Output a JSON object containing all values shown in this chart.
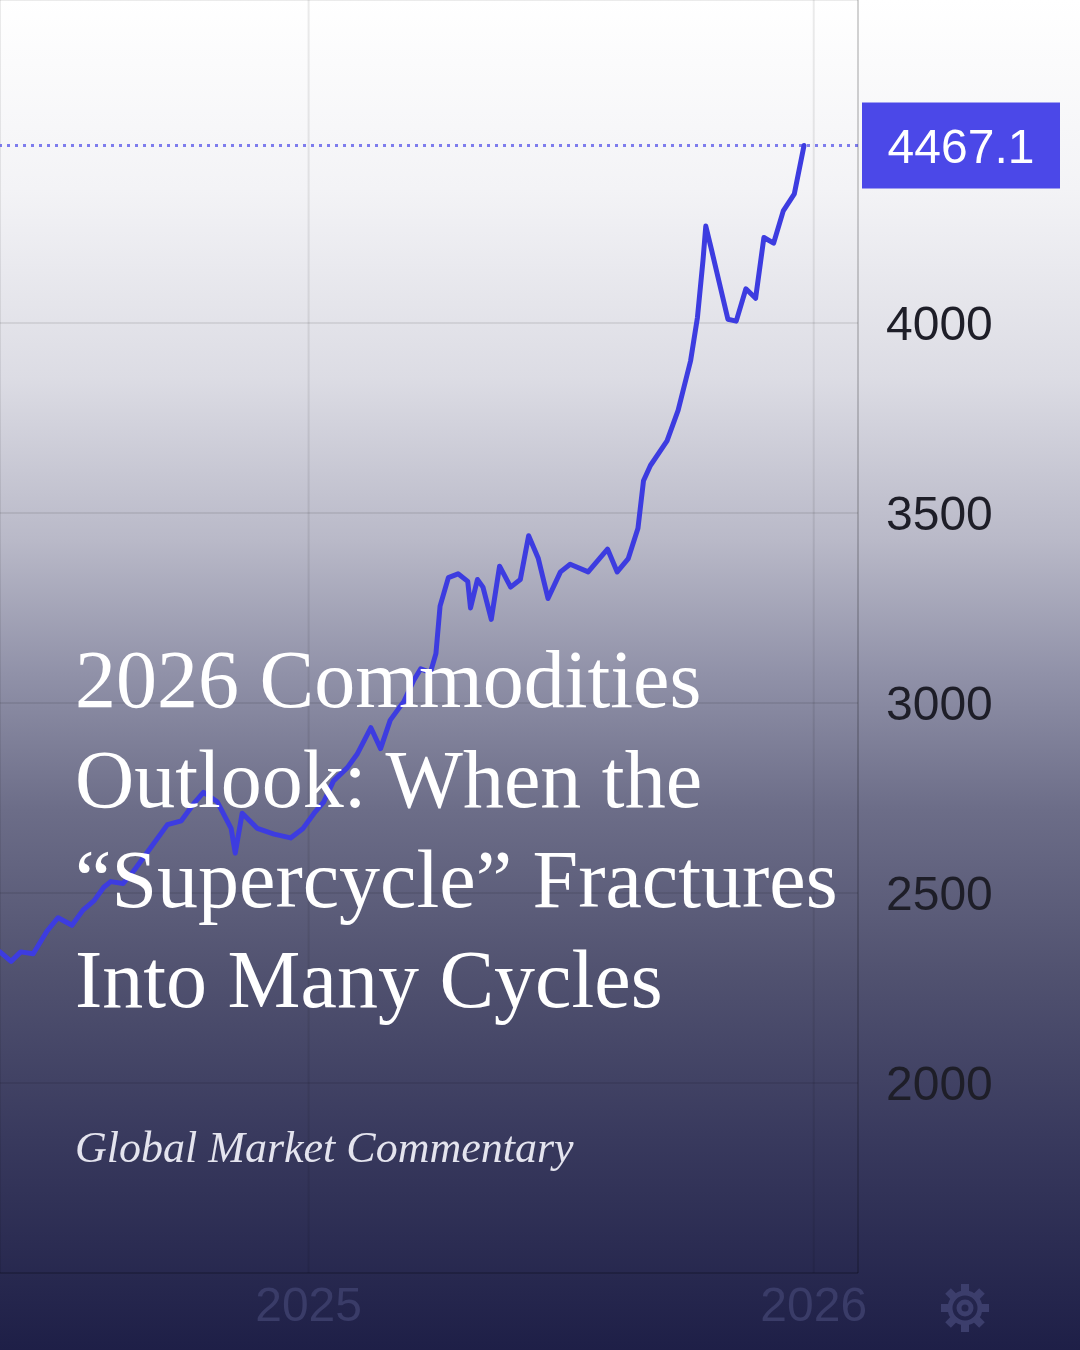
{
  "chart_data": {
    "type": "line",
    "title": "2026 Commodities Outlook: When the “Supercycle” Fractures Into Many Cycles",
    "subtitle": "Global Market Commentary",
    "x": [
      "2024-05-23",
      "2024-05-31",
      "2024-06-07",
      "2024-06-16",
      "2024-06-26",
      "2024-07-04",
      "2024-07-14",
      "2024-07-22",
      "2024-07-30",
      "2024-08-06",
      "2024-08-11",
      "2024-08-20",
      "2024-08-28",
      "2024-09-07",
      "2024-09-21",
      "2024-10-01",
      "2024-10-10",
      "2024-10-17",
      "2024-10-27",
      "2024-11-06",
      "2024-11-09",
      "2024-11-14",
      "2024-11-25",
      "2024-12-07",
      "2024-12-19",
      "2024-12-28",
      "2025-01-05",
      "2025-01-12",
      "2025-01-19",
      "2025-01-29",
      "2025-02-05",
      "2025-02-15",
      "2025-02-22",
      "2025-03-01",
      "2025-03-11",
      "2025-03-18",
      "2025-03-23",
      "2025-03-30",
      "2025-04-03",
      "2025-04-06",
      "2025-04-12",
      "2025-04-19",
      "2025-04-26",
      "2025-04-28",
      "2025-05-03",
      "2025-05-07",
      "2025-05-13",
      "2025-05-19",
      "2025-05-27",
      "2025-06-03",
      "2025-06-09",
      "2025-06-16",
      "2025-06-23",
      "2025-07-02",
      "2025-07-09",
      "2025-07-22",
      "2025-08-05",
      "2025-08-12",
      "2025-08-20",
      "2025-08-27",
      "2025-08-31",
      "2025-09-05",
      "2025-09-17",
      "2025-09-25",
      "2025-10-04",
      "2025-10-09",
      "2025-10-13",
      "2025-10-15",
      "2025-10-19",
      "2025-10-31",
      "2025-11-06",
      "2025-11-13",
      "2025-11-20",
      "2025-11-26",
      "2025-12-03",
      "2025-12-10",
      "2025-12-18",
      "2025-12-25"
    ],
    "values": [
      2345,
      2320,
      2345,
      2340,
      2400,
      2435,
      2415,
      2455,
      2480,
      2515,
      2530,
      2525,
      2560,
      2610,
      2680,
      2690,
      2735,
      2765,
      2740,
      2670,
      2605,
      2710,
      2670,
      2655,
      2645,
      2670,
      2710,
      2740,
      2795,
      2830,
      2865,
      2935,
      2880,
      2955,
      3005,
      3060,
      3090,
      3080,
      3130,
      3255,
      3330,
      3340,
      3320,
      3250,
      3325,
      3305,
      3220,
      3360,
      3305,
      3325,
      3440,
      3380,
      3275,
      3345,
      3365,
      3345,
      3405,
      3345,
      3380,
      3460,
      3585,
      3625,
      3690,
      3770,
      3900,
      4015,
      4165,
      4255,
      4195,
      4010,
      4005,
      4090,
      4065,
      4225,
      4210,
      4295,
      4340,
      4467.1
    ],
    "color": "#3d3ce0",
    "xlim": [
      "2024-05-23",
      "2026-02-02"
    ],
    "xticks": [
      "2025",
      "2026"
    ],
    "ylim": [
      1500,
      4850
    ],
    "yticks": [
      2000,
      2500,
      3000,
      3500,
      4000
    ],
    "ref_lines": [
      {
        "axis": "y",
        "value": 4467.1,
        "label": "4467.1",
        "color": "#4b48e8",
        "line_style": "dotted"
      }
    ],
    "grid": true,
    "line_style": "solid"
  }
}
